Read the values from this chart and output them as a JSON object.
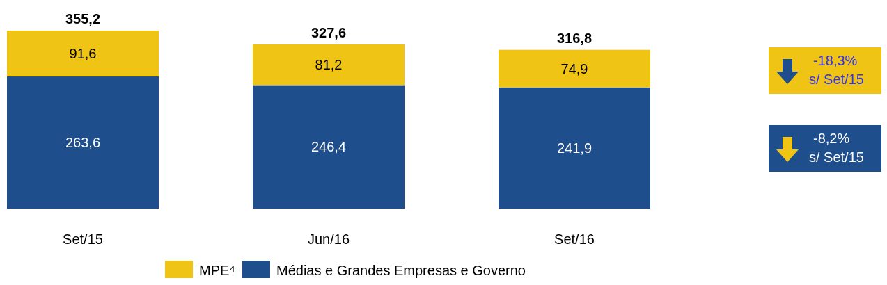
{
  "chart_data": {
    "type": "bar",
    "stacked": true,
    "categories": [
      "Set/15",
      "Jun/16",
      "Set/16"
    ],
    "series": [
      {
        "name": "Médias e Grandes Empresas e Governo",
        "color": "#1f4e8c",
        "values": [
          263.6,
          246.4,
          241.9
        ],
        "value_labels": [
          "263,6",
          "246,4",
          "241,9"
        ]
      },
      {
        "name": "MPE⁴",
        "color": "#f0c415",
        "values": [
          91.6,
          81.2,
          74.9
        ],
        "value_labels": [
          "91,6",
          "81,2",
          "74,9"
        ]
      }
    ],
    "totals": [
      "355,2",
      "327,6",
      "316,8"
    ],
    "annotations": [
      "-18,3% s/ Set/15",
      "-8,2% s/ Set/15"
    ],
    "legend": "bottom"
  }
}
